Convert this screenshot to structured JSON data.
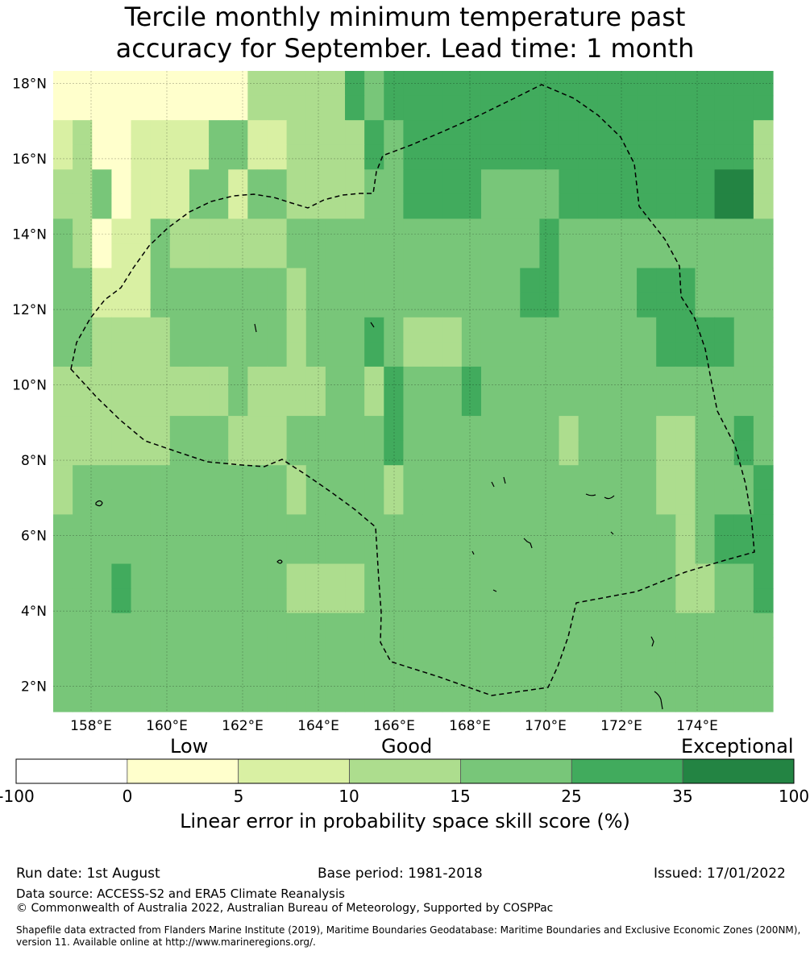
{
  "title_line1": "Tercile monthly minimum temperature past",
  "title_line2": "accuracy for September. Lead time: 1 month",
  "map": {
    "lon_range": [
      157.0,
      176.0
    ],
    "lat_range": [
      1.33,
      18.33
    ],
    "cell_size_deg": 0.5,
    "lon_ticks": [
      "158°E",
      "160°E",
      "162°E",
      "164°E",
      "166°E",
      "168°E",
      "170°E",
      "172°E",
      "174°E"
    ],
    "lat_ticks": [
      "18°N",
      "16°N",
      "14°N",
      "12°N",
      "10°N",
      "8°N",
      "6°N",
      "4°N",
      "2°N"
    ],
    "boundary_color": "#000000",
    "category_colors": [
      "#ffffff",
      "#ffffcc",
      "#d9f0a3",
      "#addd8e",
      "#78c679",
      "#41ab5d",
      "#238443"
    ],
    "grid_rows_north_to_south": [
      "1111111111333335455555555555555555555",
      "1111111111333335455555555555555555555",
      "2311222244223333545555555555555555553",
      "2311222244223333545555555555555555553",
      "3341222442443333445555444455555555663",
      "3341222442443333445555444455555555663",
      "4312243333334444444444444544444444444",
      "4312243333334444444444444544444444444",
      "4422244444443444444444445544445554444",
      "4422244444443444444444445544445554444",
      "4433334444443444543334444444444555544",
      "4433334444443444543334444444444555544",
      "3333333334333344354445444444444444444",
      "3333333334333344354445444444444444444",
      "3333334443334444454444444434444334454",
      "3333334443334444454444444434444334454",
      "3444444444443444434444444444444334445",
      "3444444444443444434444444444444334445",
      "4444444444444444444444444444444434555",
      "4444444444444444444444444444444434555",
      "4445444444443333444444444444444433445",
      "4445444444443333444444444444444433445",
      "4444444444444444444444444444444444444",
      "4444444444444444444444444444444444444",
      "4444444444444444444444444444444444444",
      "4444444444444444444444444444444444444"
    ]
  },
  "colorbar": {
    "category_labels": [
      "Low",
      "Good",
      "Exceptional"
    ],
    "tick_labels": [
      "-100",
      "0",
      "5",
      "10",
      "15",
      "25",
      "35",
      "100"
    ],
    "title": "Linear error in probability space skill score (%)"
  },
  "footer": {
    "run_date": "Run date: 1st August",
    "base_period": "Base period: 1981-2018",
    "issued": "Issued: 17/01/2022",
    "data_source": "Data source: ACCESS-S2 and ERA5 Climate Reanalysis",
    "copyright": "© Commonwealth of Australia 2022, Australian Bureau of Meteorology, Supported by COSPPac",
    "shapefile_line1": "Shapefile data extracted from Flanders Marine Institute (2019), Maritime Boundaries Geodatabase: Maritime Boundaries and Exclusive Economic Zones (200NM),",
    "shapefile_line2": "version 11. Available online at http://www.marineregions.org/."
  }
}
